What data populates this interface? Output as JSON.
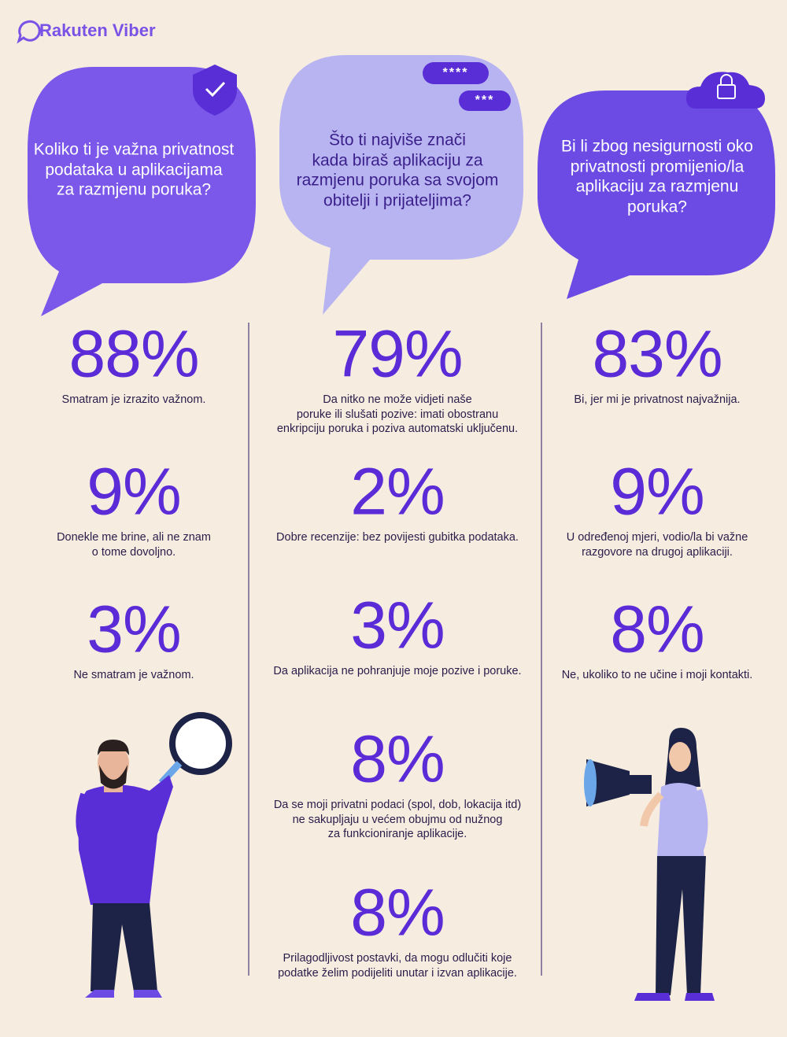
{
  "header": {
    "logo": "Rakuten Viber"
  },
  "decorations": {
    "password_bubbles": [
      "****",
      "***"
    ]
  },
  "columns": [
    {
      "question_lines": [
        "Koliko ti je važna privatnost",
        "podataka u aplikacijama",
        "za razmjenu poruka?"
      ],
      "stats": [
        {
          "value": "88%",
          "caption_lines": [
            "Smatram je izrazito važnom."
          ]
        },
        {
          "value": "9%",
          "caption_lines": [
            "Donekle me brine, ali ne znam",
            "o tome dovoljno."
          ]
        },
        {
          "value": "3%",
          "caption_lines": [
            "Ne smatram je važnom."
          ]
        }
      ]
    },
    {
      "question_lines": [
        "Što ti najviše znači",
        "kada biraš aplikaciju za",
        "razmjenu poruka sa svojom",
        "obitelji i prijateljima?"
      ],
      "stats": [
        {
          "value": "79%",
          "caption_lines": [
            "Da nitko ne može vidjeti naše",
            "poruke ili slušati pozive: imati obostranu",
            "enkripciju poruka i poziva automatski uključenu."
          ]
        },
        {
          "value": "2%",
          "caption_lines": [
            "Dobre recenzije: bez povijesti gubitka podataka."
          ]
        },
        {
          "value": "3%",
          "caption_lines": [
            "Da aplikacija ne pohranjuje moje pozive i poruke."
          ]
        },
        {
          "value": "8%",
          "caption_lines": [
            "Da se moji privatni podaci (spol, dob, lokacija itd)",
            "ne sakupljaju u većem obujmu od nužnog",
            "za funkcioniranje aplikacije."
          ]
        },
        {
          "value": "8%",
          "caption_lines": [
            "Prilagodljivost postavki, da mogu odlučiti koje",
            "podatke želim podijeliti unutar i izvan aplikacije."
          ]
        }
      ]
    },
    {
      "question_lines": [
        "Bi li zbog nesigurnosti oko",
        "privatnosti promijenio/la",
        "aplikaciju za razmjenu",
        "poruka?"
      ],
      "stats": [
        {
          "value": "83%",
          "caption_lines": [
            "Bi, jer mi je privatnost najvažnija."
          ]
        },
        {
          "value": "9%",
          "caption_lines": [
            "U određenoj mjeri, vodio/la bi važne",
            "razgovore na drugoj aplikaciji."
          ]
        },
        {
          "value": "8%",
          "caption_lines": [
            "Ne, ukoliko to ne učine i moji kontakti."
          ]
        }
      ]
    }
  ]
}
